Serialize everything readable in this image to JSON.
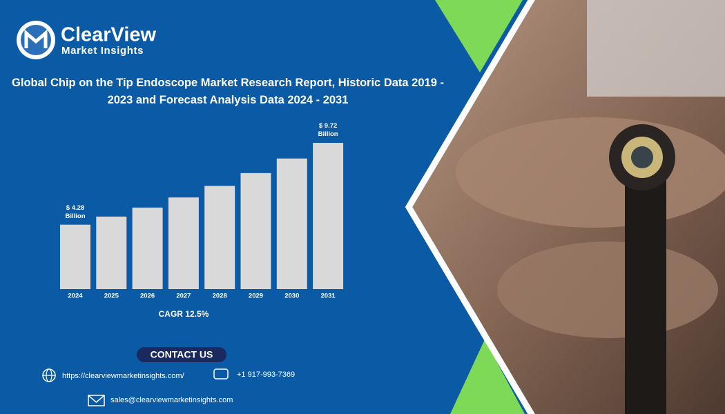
{
  "brand": {
    "name": "ClearView",
    "tagline": "Market Insights"
  },
  "chart_data": {
    "type": "bar",
    "title": "Global Chip on the Tip Endoscope Market Research Report, Historic Data 2019 - 2023 and Forecast Analysis Data 2024 - 2031",
    "categories": [
      "2024",
      "2025",
      "2026",
      "2027",
      "2028",
      "2029",
      "2030",
      "2031"
    ],
    "values": [
      4.28,
      4.82,
      5.42,
      6.09,
      6.86,
      7.71,
      8.68,
      9.72
    ],
    "value_labels": [
      "$ 4.28 Billion",
      null,
      null,
      null,
      null,
      null,
      null,
      "$ 9.72 Billion"
    ],
    "color": "#d9d9d9",
    "ylim": [
      0,
      10.5
    ],
    "annotation": "CAGR 12.5%"
  },
  "contact": {
    "heading": "CONTACT US",
    "website": "https://clearviewmarketinsights.com/",
    "phone": "+1 917-993-7369",
    "email": "sales@clearviewmarketinsights.com"
  }
}
